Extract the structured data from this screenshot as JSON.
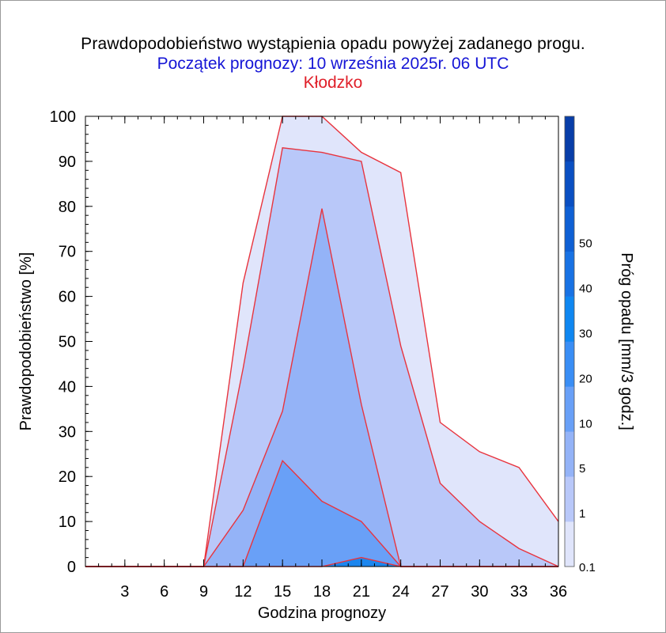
{
  "header": {
    "title": "Prawdopodobieństwo wystąpienia opadu powyżej zadanego progu.",
    "subtitle": "Początek prognozy: 10 września 2025r. 06 UTC",
    "location": "Kłodzko"
  },
  "chart_data": {
    "type": "area",
    "xlabel": "Godzina prognozy",
    "ylabel": "Prawdopodobieństwo [%]",
    "xlim": [
      0,
      36
    ],
    "ylim": [
      0,
      100
    ],
    "x_ticks": [
      3,
      6,
      9,
      12,
      15,
      18,
      21,
      24,
      27,
      30,
      33,
      36
    ],
    "y_ticks": [
      0,
      10,
      20,
      30,
      40,
      50,
      60,
      70,
      80,
      90,
      100
    ],
    "colorbar": {
      "label": "Próg opadu [mm/3 godz.]",
      "levels": [
        0.1,
        1,
        5,
        10,
        20,
        30,
        40,
        50
      ],
      "colors": [
        "#e0e5fb",
        "#b9c8f9",
        "#94b3f7",
        "#69a0f7",
        "#3a8ef5",
        "#0f87f1",
        "#1872e4",
        "#0f60d4",
        "#0a4fc2",
        "#083ea8"
      ]
    },
    "series": [
      {
        "name": "0.1",
        "color": "#e0e5fb",
        "x": [
          0,
          3,
          6,
          9,
          12,
          15,
          18,
          21,
          24,
          27,
          30,
          33,
          36
        ],
        "values": [
          0,
          0,
          0,
          0,
          63,
          100,
          100,
          92,
          87.5,
          32,
          25.5,
          22,
          10
        ]
      },
      {
        "name": "1",
        "color": "#b9c8f9",
        "x": [
          0,
          3,
          6,
          9,
          12,
          15,
          18,
          21,
          24,
          27,
          30,
          33,
          36
        ],
        "values": [
          0,
          0,
          0,
          0,
          44,
          93,
          92,
          90,
          49,
          18.5,
          10,
          4,
          0
        ]
      },
      {
        "name": "5",
        "color": "#94b3f7",
        "x": [
          0,
          3,
          6,
          9,
          12,
          15,
          18,
          21,
          24,
          27,
          30,
          33,
          36
        ],
        "values": [
          0,
          0,
          0,
          0,
          12.5,
          34.5,
          79.5,
          36,
          0,
          0,
          0,
          0,
          0
        ]
      },
      {
        "name": "10",
        "color": "#69a0f7",
        "x": [
          0,
          3,
          6,
          9,
          12,
          15,
          18,
          21,
          24,
          27,
          30,
          33,
          36
        ],
        "values": [
          0,
          0,
          0,
          0,
          0,
          23.5,
          14.5,
          10,
          0,
          0,
          0,
          0,
          0
        ]
      },
      {
        "name": "20",
        "color": "#1c86ee",
        "x": [
          0,
          3,
          6,
          9,
          12,
          15,
          18,
          21,
          24,
          27,
          30,
          33,
          36
        ],
        "values": [
          0,
          0,
          0,
          0,
          0,
          0,
          0,
          2,
          0,
          0,
          0,
          0,
          0
        ]
      }
    ]
  }
}
